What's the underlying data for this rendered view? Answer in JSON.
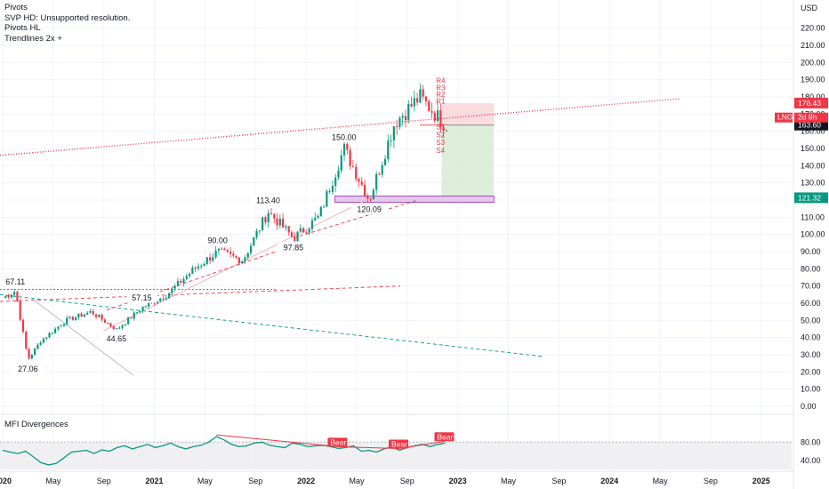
{
  "legend": {
    "lines": [
      "Pivots",
      "SVP HD: Unsupported resolution.",
      "Pivots HL",
      "Trendlines 2x +"
    ]
  },
  "currency": "USD",
  "indicator": {
    "title": "MFI Divergences",
    "axis_ticks": [
      "80.00",
      "40.00"
    ],
    "divergence_tag": "Bear"
  },
  "price_scale_tags": {
    "upper": "176.43",
    "last": "163.60",
    "lower": "121.32",
    "symbol": "LNG",
    "countdown": "2d 8h"
  },
  "pivot_labels": {
    "resistance": [
      "R4",
      "R3",
      "R2",
      "R1"
    ],
    "support": [
      "S1",
      "S2",
      "S3",
      "S4"
    ]
  },
  "colors": {
    "bull": "#089981",
    "bear": "#f23645",
    "trendline_red": "#f23645",
    "trendline_green": "#089981",
    "tag_red": "#f23645",
    "tag_green": "#089981",
    "target_zone": "#d8ebd4",
    "stop_zone": "#f7d6d8",
    "demand_zone": "#e2c9ec",
    "mfi_line": "#089981"
  },
  "chart_data": {
    "type": "candlestick",
    "y_axis": {
      "ticks": [
        "0.00",
        "10.00",
        "20.00",
        "30.00",
        "40.00",
        "50.00",
        "60.00",
        "70.00",
        "80.00",
        "90.00",
        "100.00",
        "110.00",
        "120.00",
        "130.00",
        "140.00",
        "150.00",
        "160.00",
        "170.00",
        "180.00",
        "190.00",
        "200.00",
        "210.00",
        "220.00"
      ],
      "range": [
        0,
        225
      ]
    },
    "x_axis": {
      "ticks": [
        "2020",
        "May",
        "Sep",
        "2021",
        "May",
        "Sep",
        "2022",
        "May",
        "Sep",
        "2023",
        "May",
        "Sep",
        "2024",
        "May",
        "Sep",
        "2025"
      ],
      "range": [
        "2020-01",
        "2025-02"
      ]
    },
    "price_path": [
      {
        "x": "2020-01",
        "y": 63
      },
      {
        "x": "2020-02",
        "y": 67.11
      },
      {
        "x": "2020-03",
        "y": 27.06
      },
      {
        "x": "2020-04",
        "y": 38
      },
      {
        "x": "2020-06",
        "y": 50
      },
      {
        "x": "2020-08",
        "y": 55
      },
      {
        "x": "2020-10",
        "y": 44.65
      },
      {
        "x": "2020-12",
        "y": 57.15
      },
      {
        "x": "2021-02",
        "y": 65
      },
      {
        "x": "2021-04",
        "y": 79
      },
      {
        "x": "2021-06",
        "y": 90
      },
      {
        "x": "2021-08",
        "y": 85
      },
      {
        "x": "2021-10",
        "y": 113.4
      },
      {
        "x": "2021-12",
        "y": 97.85
      },
      {
        "x": "2022-02",
        "y": 110
      },
      {
        "x": "2022-04",
        "y": 150.0
      },
      {
        "x": "2022-06",
        "y": 120.09
      },
      {
        "x": "2022-08",
        "y": 165
      },
      {
        "x": "2022-10",
        "y": 180
      },
      {
        "x": "2022-12",
        "y": 163.6
      }
    ],
    "pivot_points": [
      {
        "label": "67.11",
        "value": 67.11,
        "kind": "high"
      },
      {
        "label": "27.06",
        "value": 27.06,
        "kind": "low"
      },
      {
        "label": "57.15",
        "value": 57.15,
        "kind": "high"
      },
      {
        "label": "44.65",
        "value": 44.65,
        "kind": "low"
      },
      {
        "label": "90.00",
        "value": 90.0,
        "kind": "high"
      },
      {
        "label": "113.40",
        "value": 113.4,
        "kind": "high"
      },
      {
        "label": "97.85",
        "value": 97.85,
        "kind": "low"
      },
      {
        "label": "150.00",
        "value": 150.0,
        "kind": "high"
      },
      {
        "label": "120.09",
        "value": 120.09,
        "kind": "low"
      }
    ],
    "position": {
      "stop": 176.43,
      "entry": 163.6,
      "target": 121.32
    },
    "mfi": {
      "range": [
        20,
        100
      ],
      "values": [
        62,
        58,
        55,
        60,
        48,
        35,
        30,
        33,
        45,
        58,
        60,
        62,
        55,
        63,
        60,
        68,
        72,
        65,
        70,
        75,
        68,
        72,
        78,
        70,
        65,
        70,
        73,
        80,
        92,
        85,
        75,
        70,
        72,
        78,
        80,
        73,
        70,
        68,
        78,
        75,
        70,
        72,
        73,
        70,
        66,
        68,
        72,
        60,
        62,
        58,
        65,
        70,
        62,
        68,
        72,
        75,
        70,
        75,
        78
      ]
    }
  }
}
